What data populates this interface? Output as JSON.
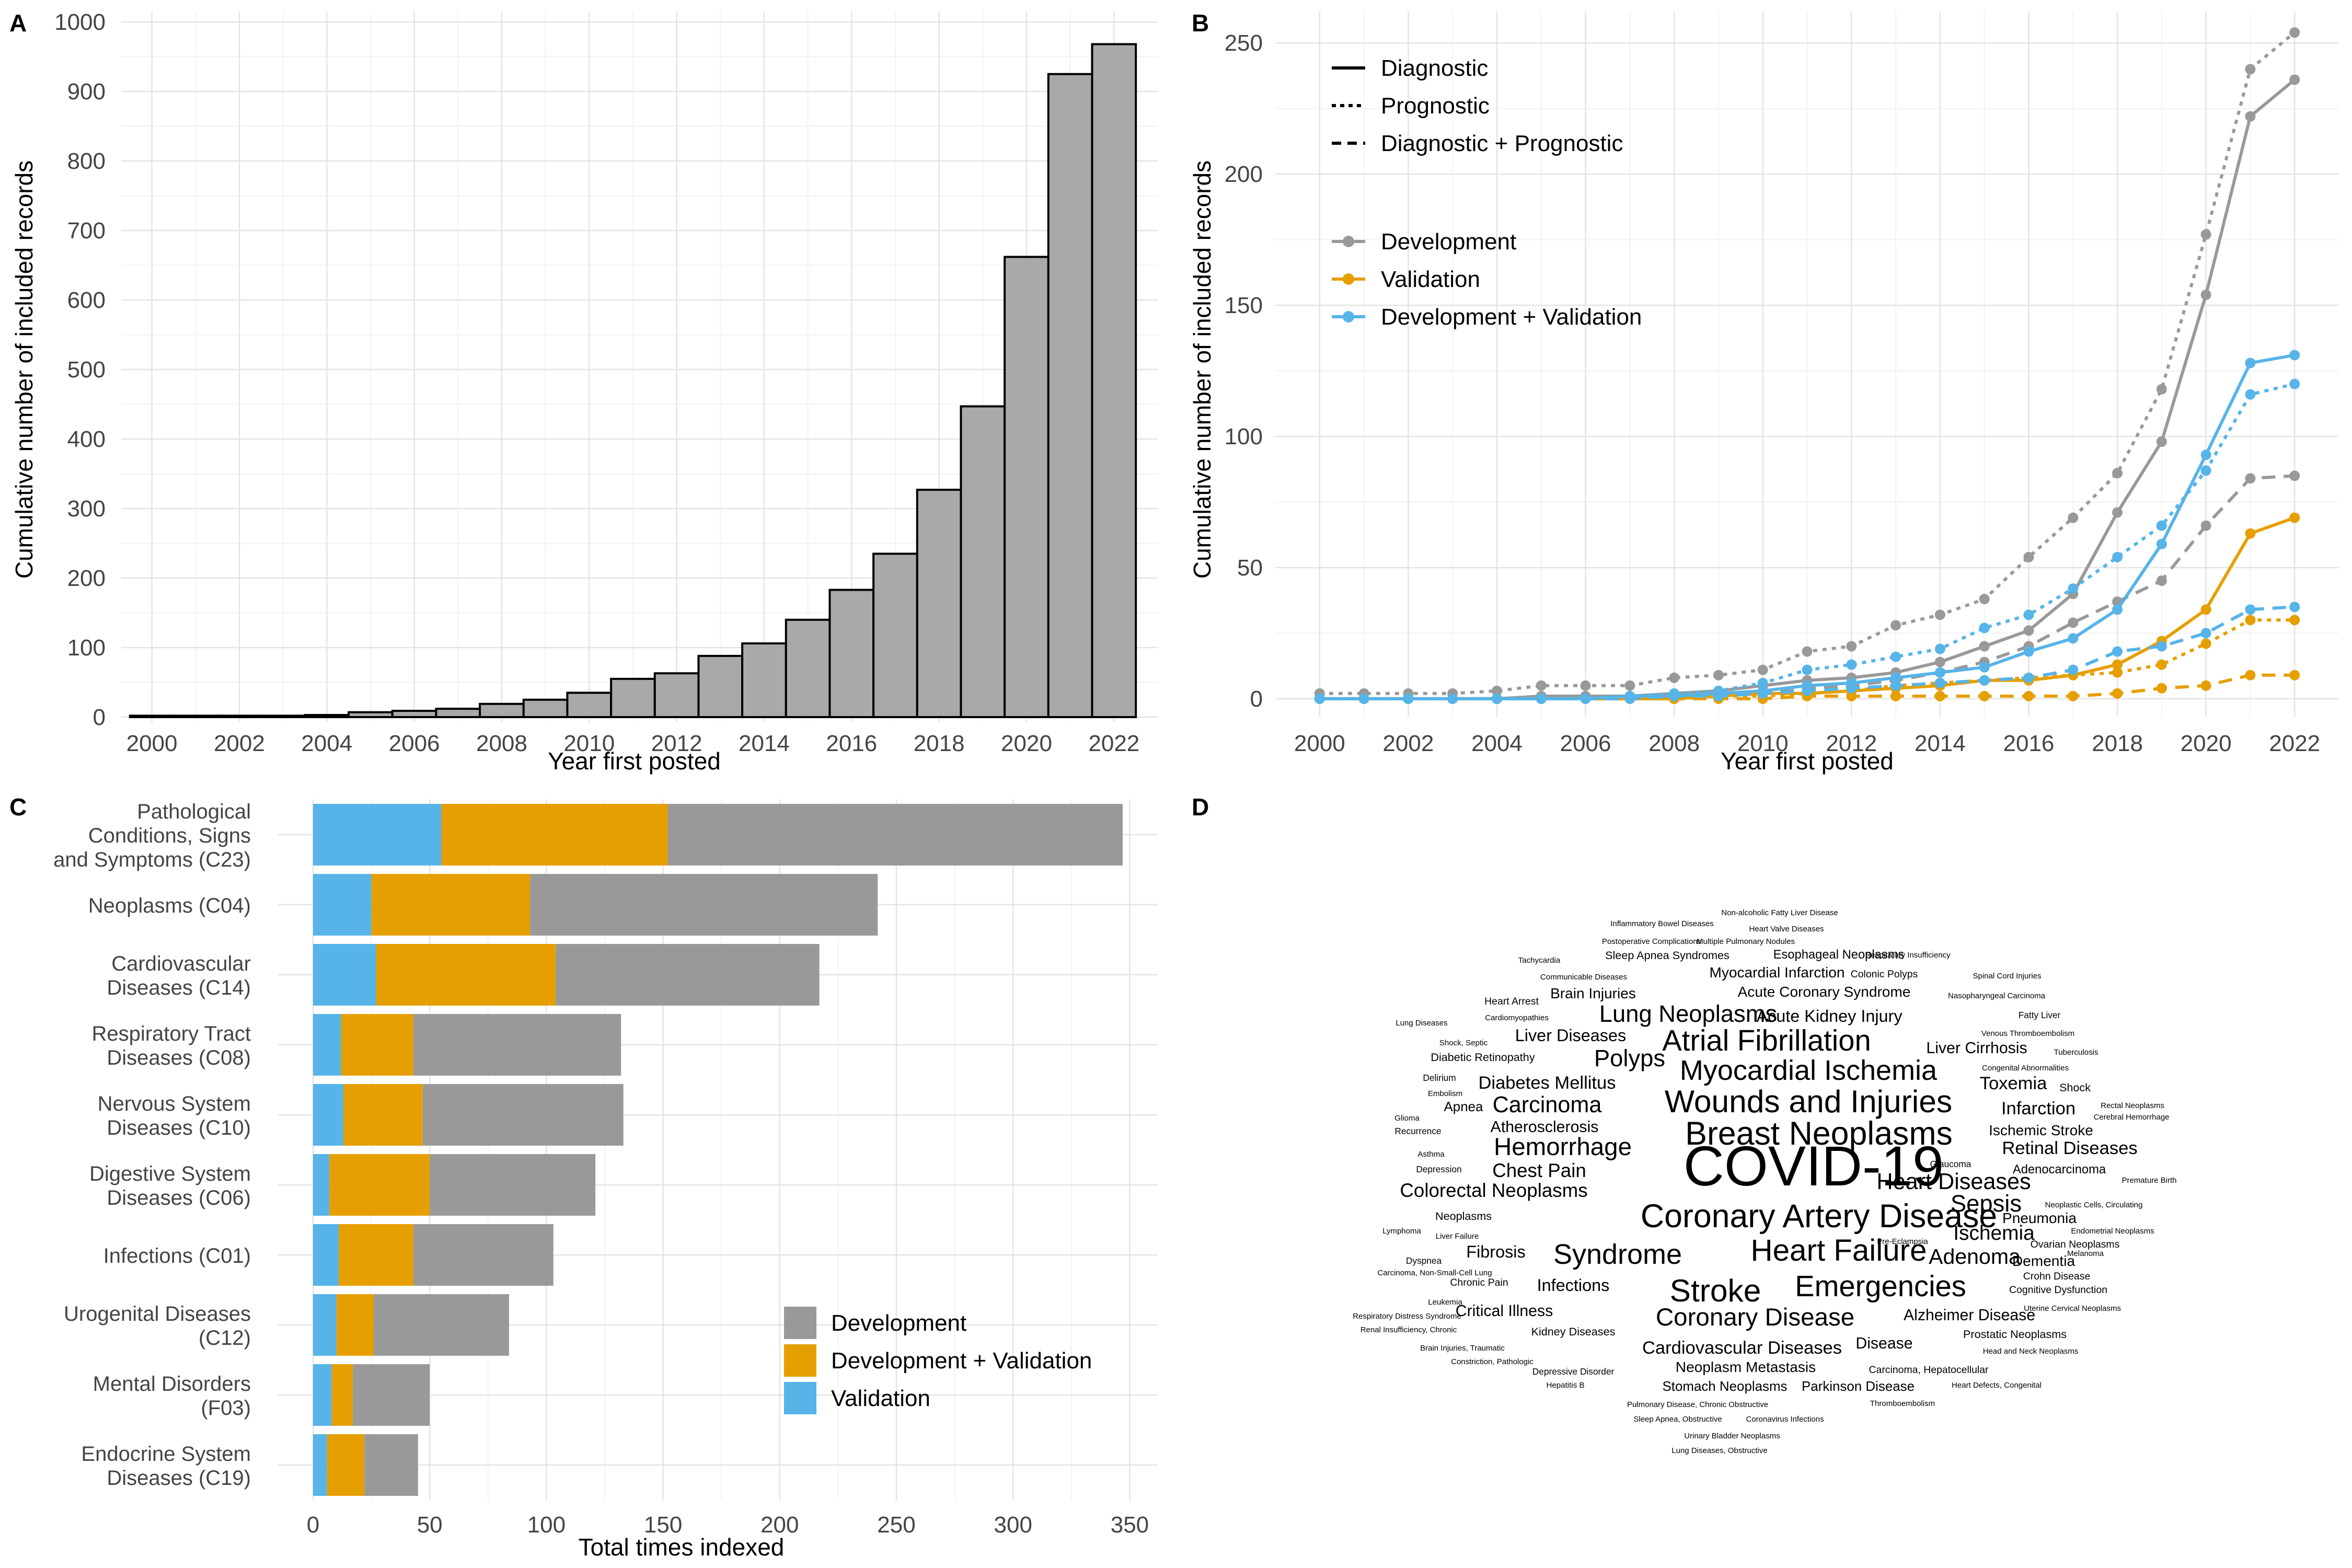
{
  "panels": {
    "A": {
      "label": "A"
    },
    "B": {
      "label": "B"
    },
    "C": {
      "label": "C"
    },
    "D": {
      "label": "D"
    }
  },
  "chart_data": [
    {
      "id": "A",
      "type": "bar",
      "xlabel": "Year first posted",
      "ylabel": "Cumulative number of included records",
      "ylim": [
        0,
        1000
      ],
      "yticks": [
        0,
        100,
        200,
        300,
        400,
        500,
        600,
        700,
        800,
        900,
        1000
      ],
      "xticks": [
        2000,
        2002,
        2004,
        2006,
        2008,
        2010,
        2012,
        2014,
        2016,
        2018,
        2020,
        2022
      ],
      "categories": [
        2000,
        2001,
        2002,
        2003,
        2004,
        2005,
        2006,
        2007,
        2008,
        2009,
        2010,
        2011,
        2012,
        2013,
        2014,
        2015,
        2016,
        2017,
        2018,
        2019,
        2020,
        2021,
        2022
      ],
      "values": [
        2,
        2,
        2,
        2,
        3,
        7,
        9,
        12,
        19,
        25,
        35,
        55,
        63,
        88,
        106,
        140,
        183,
        235,
        327,
        447,
        662,
        925,
        968
      ],
      "color": "#a9a9a9",
      "grid": true
    },
    {
      "id": "B",
      "type": "line",
      "xlabel": "Year first posted",
      "ylabel": "Cumulative number of included records",
      "ylim": [
        0,
        250
      ],
      "yticks": [
        0,
        50,
        100,
        150,
        200,
        250
      ],
      "xticks": [
        2000,
        2002,
        2004,
        2006,
        2008,
        2010,
        2012,
        2014,
        2016,
        2018,
        2020,
        2022
      ],
      "x": [
        2000,
        2001,
        2002,
        2003,
        2004,
        2005,
        2006,
        2007,
        2008,
        2009,
        2010,
        2011,
        2012,
        2013,
        2014,
        2015,
        2016,
        2017,
        2018,
        2019,
        2020,
        2021,
        2022
      ],
      "legend_linetype": {
        "title": "",
        "items": [
          {
            "label": "Diagnostic",
            "dash": "solid"
          },
          {
            "label": "Prognostic",
            "dash": "dotted"
          },
          {
            "label": "Diagnostic + Prognostic",
            "dash": "dashed"
          }
        ]
      },
      "legend_color": {
        "title": "",
        "items": [
          {
            "label": "Development",
            "color": "#999999"
          },
          {
            "label": "Validation",
            "color": "#e69f00"
          },
          {
            "label": "Development + Validation",
            "color": "#56b4e9"
          }
        ]
      },
      "legend_position": "top-left",
      "series": [
        {
          "type": "Diagnostic",
          "stage": "Development",
          "color": "#999999",
          "dash": "solid",
          "values": [
            0,
            0,
            0,
            0,
            0,
            1,
            1,
            1,
            2,
            3,
            5,
            7,
            8,
            10,
            14,
            20,
            26,
            40,
            71,
            98,
            154,
            222,
            236
          ]
        },
        {
          "type": "Prognostic",
          "stage": "Development",
          "color": "#999999",
          "dash": "dotted",
          "values": [
            2,
            2,
            2,
            2,
            3,
            5,
            5,
            5,
            8,
            9,
            11,
            18,
            20,
            28,
            32,
            38,
            54,
            69,
            86,
            118,
            177,
            240,
            254
          ]
        },
        {
          "type": "Diagnostic + Prognostic",
          "stage": "Development",
          "color": "#999999",
          "dash": "dashed",
          "values": [
            0,
            0,
            0,
            0,
            0,
            0,
            0,
            0,
            1,
            1,
            2,
            4,
            5,
            7,
            10,
            14,
            20,
            29,
            37,
            45,
            66,
            84,
            85
          ]
        },
        {
          "type": "Diagnostic",
          "stage": "Validation",
          "color": "#e69f00",
          "dash": "solid",
          "values": [
            0,
            0,
            0,
            0,
            0,
            0,
            0,
            0,
            0,
            1,
            2,
            2,
            3,
            4,
            5,
            7,
            7,
            9,
            13,
            22,
            34,
            63,
            69
          ]
        },
        {
          "type": "Prognostic",
          "stage": "Validation",
          "color": "#e69f00",
          "dash": "dotted",
          "values": [
            0,
            0,
            0,
            0,
            0,
            0,
            0,
            0,
            0,
            1,
            1,
            2,
            3,
            5,
            6,
            7,
            8,
            9,
            10,
            13,
            21,
            30,
            30
          ]
        },
        {
          "type": "Diagnostic + Prognostic",
          "stage": "Validation",
          "color": "#e69f00",
          "dash": "dashed",
          "values": [
            0,
            0,
            0,
            0,
            0,
            0,
            0,
            0,
            0,
            0,
            0,
            1,
            1,
            1,
            1,
            1,
            1,
            1,
            2,
            4,
            5,
            9,
            9
          ]
        },
        {
          "type": "Diagnostic",
          "stage": "Development + Validation",
          "color": "#56b4e9",
          "dash": "solid",
          "values": [
            0,
            0,
            0,
            0,
            0,
            0,
            0,
            1,
            1,
            2,
            3,
            5,
            6,
            8,
            10,
            12,
            18,
            23,
            34,
            59,
            93,
            128,
            131
          ]
        },
        {
          "type": "Prognostic",
          "stage": "Development + Validation",
          "color": "#56b4e9",
          "dash": "dotted",
          "values": [
            0,
            0,
            0,
            0,
            0,
            0,
            0,
            1,
            2,
            3,
            6,
            11,
            13,
            16,
            19,
            27,
            32,
            42,
            54,
            66,
            87,
            116,
            120
          ]
        },
        {
          "type": "Diagnostic + Prognostic",
          "stage": "Development + Validation",
          "color": "#56b4e9",
          "dash": "dashed",
          "values": [
            0,
            0,
            0,
            0,
            0,
            0,
            0,
            0,
            1,
            1,
            2,
            3,
            4,
            5,
            6,
            7,
            8,
            11,
            18,
            20,
            25,
            34,
            35
          ]
        }
      ],
      "grid": true
    },
    {
      "id": "C",
      "type": "bar",
      "orientation": "horizontal",
      "stacked": true,
      "xlabel": "Total times indexed",
      "xlim": [
        0,
        350
      ],
      "xticks": [
        0,
        50,
        100,
        150,
        200,
        250,
        300,
        350
      ],
      "categories": [
        "Pathological Conditions, Signs and Symptoms (C23)",
        "Neoplasms (C04)",
        "Cardiovascular Diseases (C14)",
        "Respiratory Tract Diseases (C08)",
        "Nervous System Diseases (C10)",
        "Digestive System Diseases (C06)",
        "Infections (C01)",
        "Urogenital Diseases (C12)",
        "Mental Disorders (F03)",
        "Endocrine System Diseases (C19)"
      ],
      "category_lines": [
        [
          "Pathological",
          "Conditions, Signs",
          "and Symptoms (C23)"
        ],
        [
          "Neoplasms (C04)"
        ],
        [
          "Cardiovascular",
          "Diseases (C14)"
        ],
        [
          "Respiratory Tract",
          "Diseases (C08)"
        ],
        [
          "Nervous System",
          "Diseases (C10)"
        ],
        [
          "Digestive System",
          "Diseases (C06)"
        ],
        [
          "Infections (C01)"
        ],
        [
          "Urogenital Diseases",
          "(C12)"
        ],
        [
          "Mental Disorders",
          "(F03)"
        ],
        [
          "Endocrine System",
          "Diseases (C19)"
        ]
      ],
      "series": [
        {
          "name": "Validation",
          "color": "#56b4e9",
          "values": [
            55,
            25,
            27,
            12,
            13,
            7,
            11,
            10,
            8,
            6
          ]
        },
        {
          "name": "Development + Validation",
          "color": "#e69f00",
          "values": [
            97,
            68,
            77,
            31,
            34,
            43,
            32,
            16,
            9,
            16
          ]
        },
        {
          "name": "Development",
          "color": "#999999",
          "values": [
            195,
            149,
            113,
            89,
            86,
            71,
            60,
            58,
            33,
            23
          ]
        }
      ],
      "legend": [
        {
          "label": "Development",
          "color": "#999999"
        },
        {
          "label": "Development + Validation",
          "color": "#e69f00"
        },
        {
          "label": "Validation",
          "color": "#56b4e9"
        }
      ],
      "legend_position": "bottom-right",
      "grid": true
    },
    {
      "id": "D",
      "type": "wordcloud",
      "words": [
        {
          "text": "COVID-19",
          "weight": 100
        },
        {
          "text": "Coronary Artery Disease",
          "weight": 58
        },
        {
          "text": "Breast Neoplasms",
          "weight": 58
        },
        {
          "text": "Wounds and Injuries",
          "weight": 56
        },
        {
          "text": "Stroke",
          "weight": 56
        },
        {
          "text": "Heart Failure",
          "weight": 54
        },
        {
          "text": "Atrial Fibrillation",
          "weight": 52
        },
        {
          "text": "Emergencies",
          "weight": 52
        },
        {
          "text": "Myocardial Ischemia",
          "weight": 50
        },
        {
          "text": "Syndrome",
          "weight": 50
        },
        {
          "text": "Coronary Disease",
          "weight": 44
        },
        {
          "text": "Hemorrhage",
          "weight": 44
        },
        {
          "text": "Lung Neoplasms",
          "weight": 42
        },
        {
          "text": "Polyps",
          "weight": 42
        },
        {
          "text": "Sepsis",
          "weight": 42
        },
        {
          "text": "Heart Diseases",
          "weight": 40
        },
        {
          "text": "Carcinoma",
          "weight": 40
        },
        {
          "text": "Adenoma",
          "weight": 38
        },
        {
          "text": "Ischemia",
          "weight": 36
        },
        {
          "text": "Colorectal Neoplasms",
          "weight": 34
        },
        {
          "text": "Chest Pain",
          "weight": 34
        },
        {
          "text": "Diabetes Mellitus",
          "weight": 32
        },
        {
          "text": "Infarction",
          "weight": 32
        },
        {
          "text": "Toxemia",
          "weight": 32
        },
        {
          "text": "Retinal Diseases",
          "weight": 32
        },
        {
          "text": "Cardiovascular Diseases",
          "weight": 32
        },
        {
          "text": "Fibrosis",
          "weight": 30
        },
        {
          "text": "Infections",
          "weight": 30
        },
        {
          "text": "Liver Diseases",
          "weight": 30
        },
        {
          "text": "Acute Kidney Injury",
          "weight": 30
        },
        {
          "text": "Atherosclerosis",
          "weight": 28
        },
        {
          "text": "Liver Cirrhosis",
          "weight": 28
        },
        {
          "text": "Alzheimer Disease",
          "weight": 28
        },
        {
          "text": "Disease",
          "weight": 28
        },
        {
          "text": "Critical Illness",
          "weight": 28
        },
        {
          "text": "Brain Injuries",
          "weight": 26
        },
        {
          "text": "Acute Coronary Syndrome",
          "weight": 26
        },
        {
          "text": "Myocardial Infarction",
          "weight": 26
        },
        {
          "text": "Ischemic Stroke",
          "weight": 26
        },
        {
          "text": "Neoplasm Metastasis",
          "weight": 26
        },
        {
          "text": "Dementia",
          "weight": 26
        },
        {
          "text": "Pneumonia",
          "weight": 26
        },
        {
          "text": "Stomach Neoplasms",
          "weight": 24
        },
        {
          "text": "Parkinson Disease",
          "weight": 24
        },
        {
          "text": "Apnea",
          "weight": 24
        },
        {
          "text": "Adenocarcinoma",
          "weight": 22
        },
        {
          "text": "Esophageal Neoplasms",
          "weight": 22
        },
        {
          "text": "Sleep Apnea Syndromes",
          "weight": 20
        },
        {
          "text": "Diabetic Retinopathy",
          "weight": 20
        },
        {
          "text": "Neoplasms",
          "weight": 20
        },
        {
          "text": "Shock",
          "weight": 20
        },
        {
          "text": "Kidney Diseases",
          "weight": 20
        },
        {
          "text": "Prostatic Neoplasms",
          "weight": 20
        },
        {
          "text": "Carcinoma, Hepatocellular",
          "weight": 18
        },
        {
          "text": "Crohn Disease",
          "weight": 18
        },
        {
          "text": "Cognitive Dysfunction",
          "weight": 18
        },
        {
          "text": "Ovarian Neoplasms",
          "weight": 18
        },
        {
          "text": "Heart Arrest",
          "weight": 18
        },
        {
          "text": "Colonic Polyps",
          "weight": 18
        },
        {
          "text": "Fatty Liver",
          "weight": 16
        },
        {
          "text": "Glaucoma",
          "weight": 16
        },
        {
          "text": "Depression",
          "weight": 16
        },
        {
          "text": "Depressive Disorder",
          "weight": 16
        },
        {
          "text": "Recurrence",
          "weight": 16
        },
        {
          "text": "Delirium",
          "weight": 16
        },
        {
          "text": "Dyspnea",
          "weight": 16
        },
        {
          "text": "Chronic Pain",
          "weight": 18
        },
        {
          "text": "Tachycardia",
          "weight": 14
        },
        {
          "text": "Cardiomyopathies",
          "weight": 14
        },
        {
          "text": "Embolism",
          "weight": 14
        },
        {
          "text": "Asthma",
          "weight": 14
        },
        {
          "text": "Leukemia",
          "weight": 14
        },
        {
          "text": "Hepatitis B",
          "weight": 14
        },
        {
          "text": "Tuberculosis",
          "weight": 14
        },
        {
          "text": "Shock, Septic",
          "weight": 14
        },
        {
          "text": "Glioma",
          "weight": 14
        },
        {
          "text": "Multiple Pulmonary Nodules",
          "weight": 14
        },
        {
          "text": "Communicable Diseases",
          "weight": 12
        },
        {
          "text": "Urinary Bladder Neoplasms",
          "weight": 12
        },
        {
          "text": "Pulmonary Disease, Chronic Obstructive",
          "weight": 12
        },
        {
          "text": "Sleep Apnea, Obstructive",
          "weight": 12
        },
        {
          "text": "Coronavirus Infections",
          "weight": 12
        },
        {
          "text": "Liver Failure",
          "weight": 12
        },
        {
          "text": "Venous Thromboembolism",
          "weight": 12
        },
        {
          "text": "Lymphoma",
          "weight": 12
        },
        {
          "text": "Thromboembolism",
          "weight": 12
        },
        {
          "text": "Congenital Abnormalities",
          "weight": 12
        },
        {
          "text": "Pre-Eclampsia",
          "weight": 12
        },
        {
          "text": "Uterine Cervical Neoplasms",
          "weight": 12
        },
        {
          "text": "Head and Neck Neoplasms",
          "weight": 12
        },
        {
          "text": "Heart Valve Diseases",
          "weight": 12
        },
        {
          "text": "Lung Diseases",
          "weight": 12
        },
        {
          "text": "Brain Injuries, Traumatic",
          "weight": 12
        },
        {
          "text": "Carcinoma, Non-Small-Cell Lung",
          "weight": 12
        },
        {
          "text": "Postoperative Complications",
          "weight": 12
        },
        {
          "text": "Nasopharyngeal Carcinoma",
          "weight": 12
        },
        {
          "text": "Respiratory Insufficiency",
          "weight": 12
        },
        {
          "text": "Spinal Cord Injuries",
          "weight": 12
        },
        {
          "text": "Rectal Neoplasms",
          "weight": 10
        },
        {
          "text": "Cerebral Hemorrhage",
          "weight": 10
        },
        {
          "text": "Premature Birth",
          "weight": 10
        },
        {
          "text": "Neoplastic Cells, Circulating",
          "weight": 10
        },
        {
          "text": "Endometrial Neoplasms",
          "weight": 10
        },
        {
          "text": "Melanoma",
          "weight": 10
        },
        {
          "text": "Inflammatory Bowel Diseases",
          "weight": 10
        },
        {
          "text": "Non-alcoholic Fatty Liver Disease",
          "weight": 10
        },
        {
          "text": "Respiratory Distress Syndrome",
          "weight": 10
        },
        {
          "text": "Renal Insufficiency, Chronic",
          "weight": 10
        },
        {
          "text": "Constriction, Pathologic",
          "weight": 10
        },
        {
          "text": "Heart Defects, Congenital",
          "weight": 10
        },
        {
          "text": "Lung Diseases, Obstructive",
          "weight": 10
        }
      ]
    }
  ]
}
